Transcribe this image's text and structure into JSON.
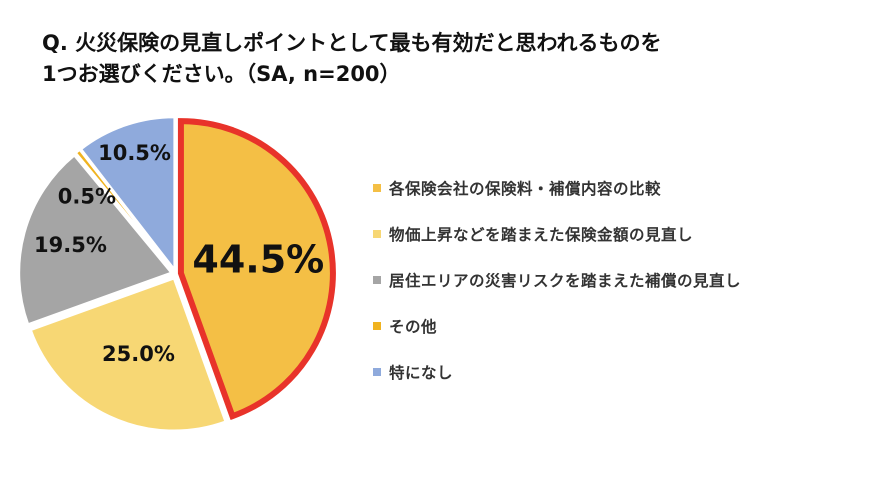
{
  "title": {
    "line1": "Q. 火災保険の見直しポイントとして最も有効だと思われるものを",
    "line2": "1つお選びください。（SA, n=200）"
  },
  "chart_data": {
    "type": "pie",
    "title": "Q. 火災保険の見直しポイントとして最も有効だと思われるものを1つお選びください。（SA, n=200）",
    "unit": "%",
    "legend_position": "right",
    "highlighted_slice": "各保険会社の保険料・補償内容の比較",
    "highlight_color": "#e8332a",
    "slices": [
      {
        "label": "各保険会社の保険料・補償内容の比較",
        "value": 44.5,
        "display": "44.5%",
        "color": "#f4bf45",
        "highlight": true
      },
      {
        "label": "物価上昇などを踏まえた保険金額の見直し",
        "value": 25.0,
        "display": "25.0%",
        "color": "#f7d774"
      },
      {
        "label": "居住エリアの災害リスクを踏まえた補償の見直し",
        "value": 19.5,
        "display": "19.5%",
        "color": "#a5a5a5"
      },
      {
        "label": "その他",
        "value": 0.5,
        "display": "0.5%",
        "color": "#f0b320"
      },
      {
        "label": "特になし",
        "value": 10.5,
        "display": "10.5%",
        "color": "#8faadc"
      }
    ]
  }
}
